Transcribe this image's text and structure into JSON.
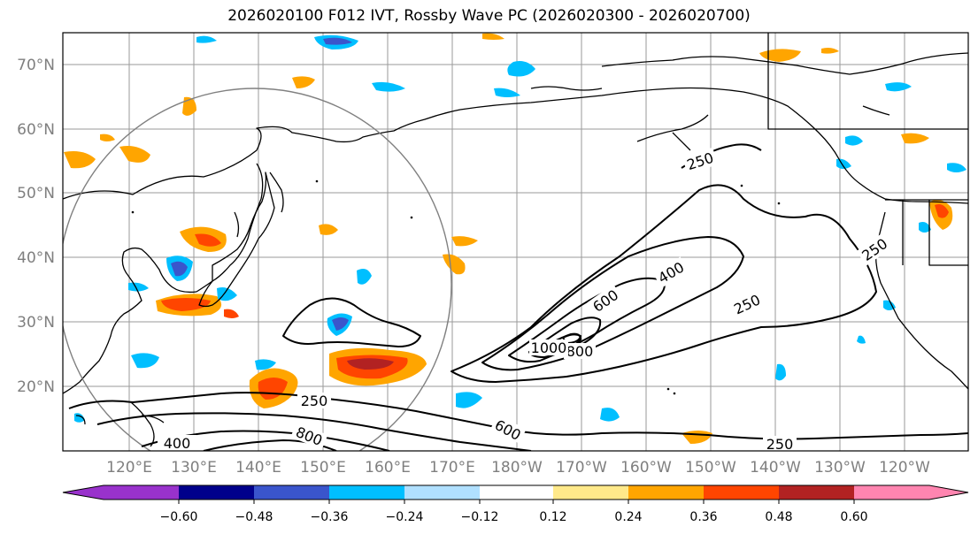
{
  "title": "2026020100 F012 IVT, Rossby Wave PC (2026020300 - 2026020700)",
  "map": {
    "lat_labels": [
      "70°N",
      "60°N",
      "50°N",
      "40°N",
      "30°N",
      "20°N"
    ],
    "lon_labels": [
      "120°E",
      "130°E",
      "140°E",
      "150°E",
      "160°E",
      "170°E",
      "180°W",
      "170°W",
      "160°W",
      "150°W",
      "140°W",
      "130°W",
      "120°W"
    ],
    "contour_labels": [
      "250",
      "400",
      "600",
      "800",
      "1000",
      "250",
      "250",
      "250",
      "400",
      "600",
      "800",
      "250"
    ]
  },
  "colorbar": {
    "colors": [
      "#9932cc",
      "#00008b",
      "#3a55cc",
      "#00bfff",
      "#b0e0ff",
      "#ffffff",
      "#ffe98a",
      "#ffa500",
      "#ff4500",
      "#b22222",
      "#ff85b0"
    ],
    "tick_labels": [
      "−0.60",
      "−0.48",
      "−0.36",
      "−0.24",
      "−0.12",
      "0.12",
      "0.24",
      "0.36",
      "0.48",
      "0.60"
    ]
  }
}
